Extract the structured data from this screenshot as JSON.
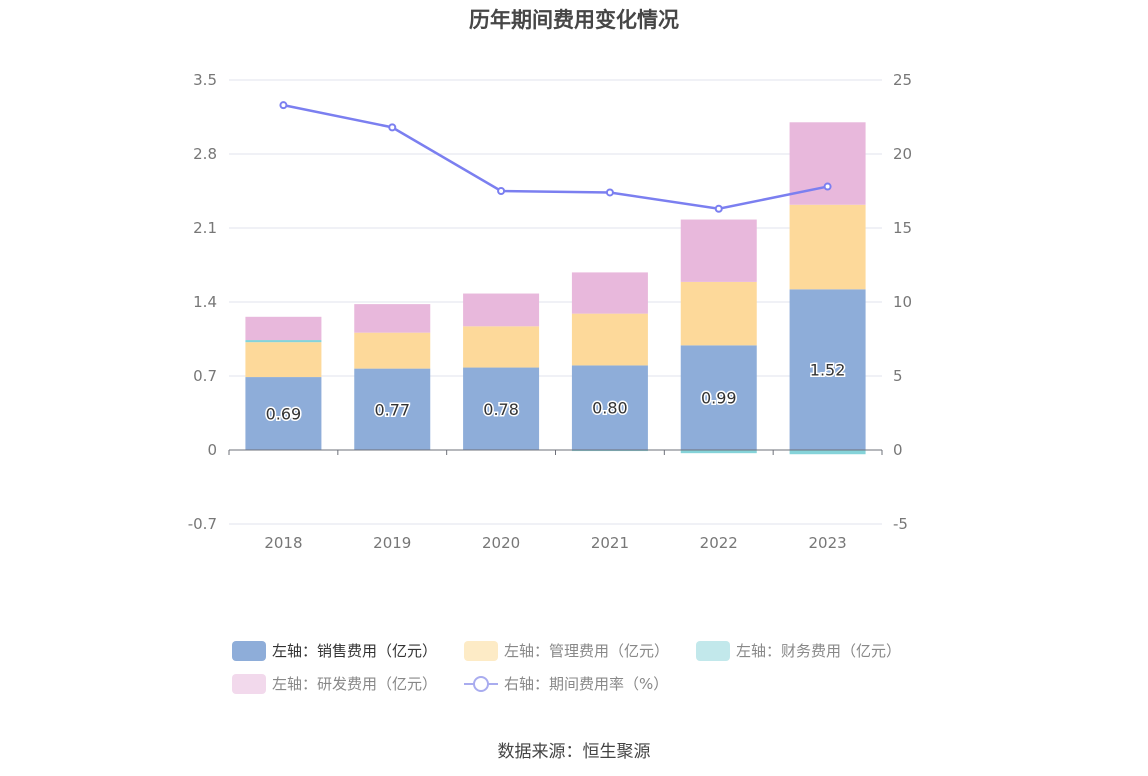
{
  "chart_data": {
    "type": "bar",
    "title": "历年期间费用变化情况",
    "categories": [
      "2018",
      "2019",
      "2020",
      "2021",
      "2022",
      "2023"
    ],
    "left_axis": {
      "ylim": [
        -0.7,
        3.5
      ],
      "ticks": [
        "3.5",
        "2.8",
        "2.1",
        "1.4",
        "0.7",
        "0",
        "-0.7"
      ]
    },
    "right_axis": {
      "ylim": [
        -5,
        25
      ],
      "ticks": [
        "25",
        "20",
        "15",
        "10",
        "5",
        "0",
        "-5"
      ]
    },
    "series": [
      {
        "name": "左轴：销售费用（亿元）",
        "type": "bar",
        "axis": "left",
        "color": "#8eadd9",
        "values": [
          0.69,
          0.77,
          0.78,
          0.8,
          0.99,
          1.52
        ],
        "labels": [
          "0.69",
          "0.77",
          "0.78",
          "0.80",
          "0.99",
          "1.52"
        ]
      },
      {
        "name": "左轴：管理费用（亿元）",
        "type": "bar",
        "axis": "left",
        "color": "#fdd99a",
        "values": [
          0.33,
          0.34,
          0.39,
          0.49,
          0.6,
          0.8
        ]
      },
      {
        "name": "左轴：财务费用（亿元）",
        "type": "bar",
        "axis": "left",
        "color": "#85d3d9",
        "values": [
          0.02,
          0.0,
          0.0,
          -0.01,
          -0.03,
          -0.04
        ]
      },
      {
        "name": "左轴：研发费用（亿元）",
        "type": "bar",
        "axis": "left",
        "color": "#e8b8dc",
        "values": [
          0.22,
          0.27,
          0.31,
          0.39,
          0.59,
          0.78
        ]
      },
      {
        "name": "右轴：期间费用率（%）",
        "type": "line",
        "axis": "right",
        "color": "#7b7ff0",
        "values": [
          23.3,
          21.8,
          17.5,
          17.4,
          16.3,
          17.8
        ]
      }
    ],
    "legend_position": "bottom"
  },
  "source": "数据来源：恒生聚源"
}
